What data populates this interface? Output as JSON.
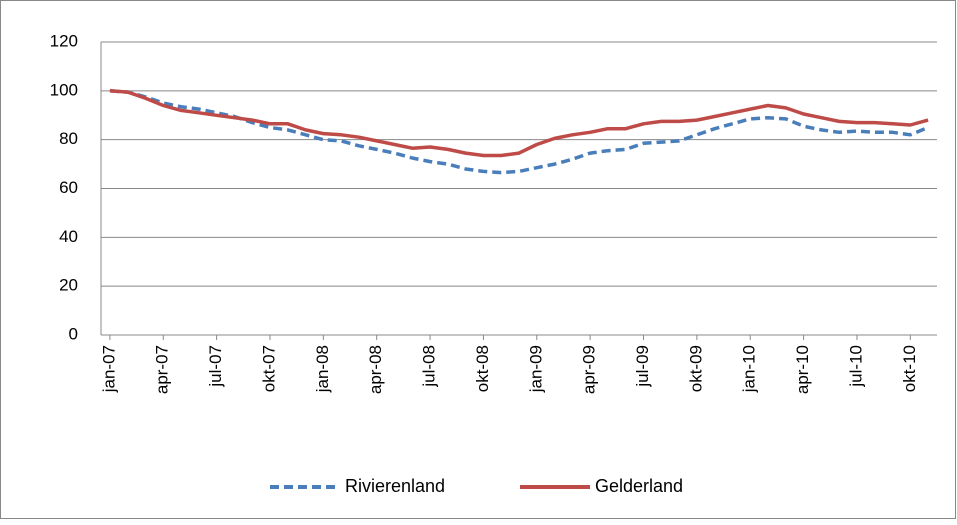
{
  "chart_data": {
    "type": "line",
    "categories": [
      "jan-07",
      null,
      null,
      "apr-07",
      null,
      null,
      "jul-07",
      null,
      null,
      "okt-07",
      null,
      null,
      "jan-08",
      null,
      null,
      "apr-08",
      null,
      null,
      "jul-08",
      null,
      null,
      "okt-08",
      null,
      null,
      "jan-09",
      null,
      null,
      "apr-09",
      null,
      null,
      "jul-09",
      null,
      null,
      "okt-09",
      null,
      null,
      "jan-10",
      null,
      null,
      "apr-10",
      null,
      null,
      "jul-10",
      null,
      null,
      "okt-10",
      null
    ],
    "series": [
      {
        "name": "Rivierenland",
        "color": "#4a7ebb",
        "dashed": true,
        "values": [
          100,
          99.5,
          97.5,
          95,
          93.5,
          92.5,
          91,
          89.5,
          87,
          85,
          84,
          82,
          80,
          79.5,
          77.5,
          76,
          74.5,
          72.5,
          71,
          70,
          68,
          67,
          66.5,
          67,
          68.5,
          70,
          72,
          74.5,
          75.5,
          76,
          78.5,
          79,
          79.5,
          82,
          84.5,
          86.5,
          88.5,
          89,
          88.5,
          85.5,
          84,
          83,
          83.5,
          83,
          83,
          82,
          85
        ]
      },
      {
        "name": "Gelderland",
        "color": "#be4b48",
        "dashed": false,
        "values": [
          100,
          99.5,
          97,
          94,
          92,
          91,
          90,
          89,
          88,
          86.5,
          86.5,
          84,
          82.5,
          82,
          81,
          79.5,
          78,
          76.5,
          77,
          76,
          74.5,
          73.5,
          73.5,
          74.5,
          78,
          80.5,
          82,
          83,
          84.5,
          84.5,
          86.5,
          87.5,
          87.5,
          88,
          89.5,
          91,
          92.5,
          94,
          93,
          90.5,
          89,
          87.5,
          87,
          87,
          86.5,
          86,
          88
        ]
      }
    ],
    "ylim": [
      0,
      120
    ],
    "yticks": [
      0,
      20,
      40,
      60,
      80,
      100,
      120
    ],
    "grid": true,
    "legend": "bottom"
  }
}
